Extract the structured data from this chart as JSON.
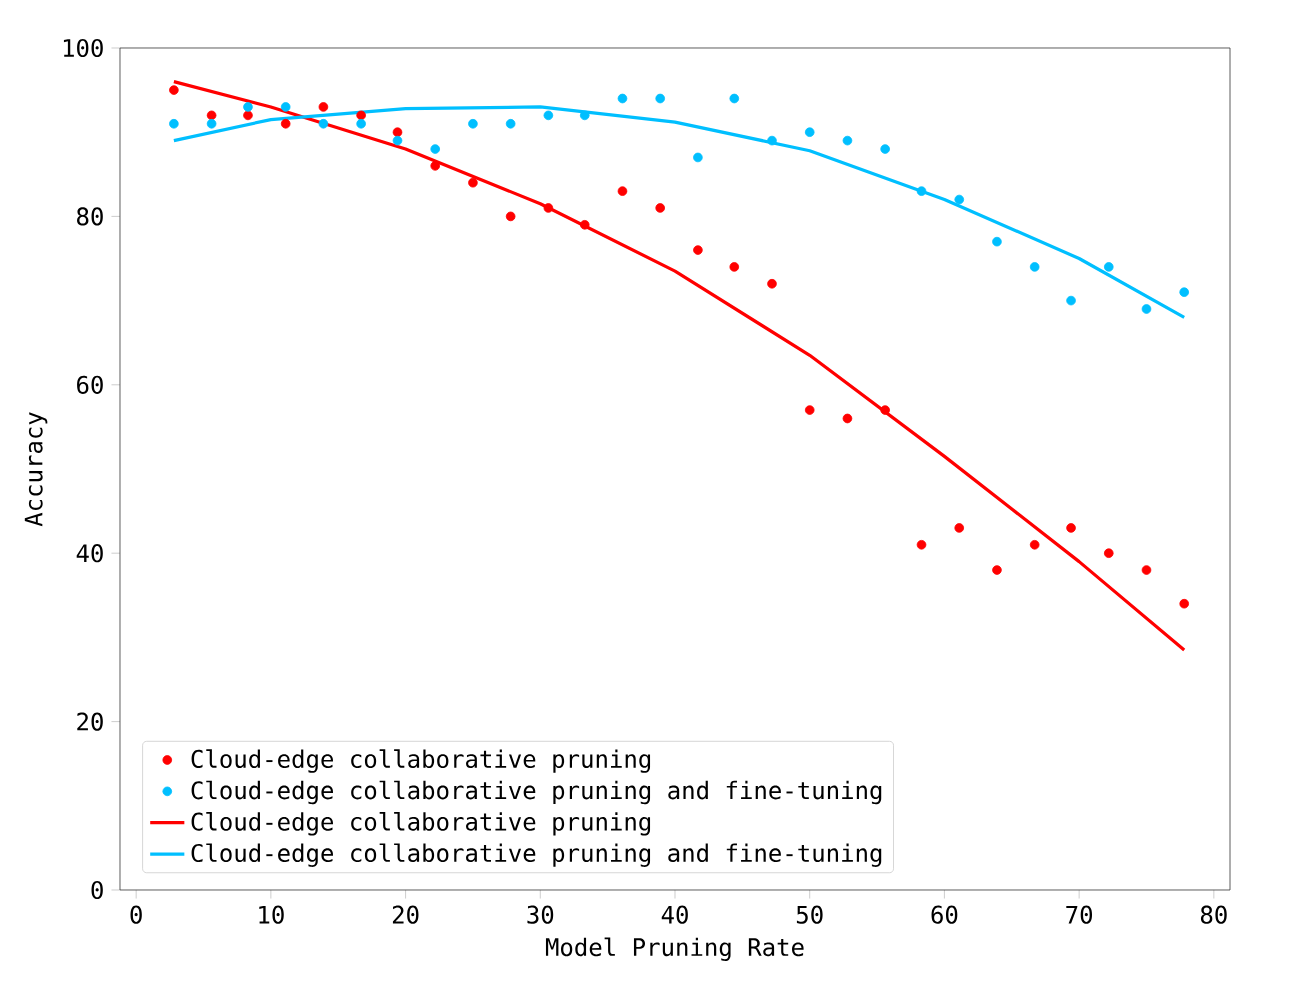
{
  "chart_data": {
    "type": "scatter",
    "xlabel": "Model Pruning Rate",
    "ylabel": "Accuracy",
    "xlim": [
      -1.2,
      81.2
    ],
    "ylim": [
      0,
      100
    ],
    "xticks": [
      0,
      10,
      20,
      30,
      40,
      50,
      60,
      70,
      80
    ],
    "yticks": [
      0,
      20,
      40,
      60,
      80,
      100
    ],
    "legend": "bottom left",
    "grid": false,
    "x": [
      2.8,
      5.6,
      8.3,
      11.1,
      13.9,
      16.7,
      19.4,
      22.2,
      25,
      27.8,
      30.6,
      33.3,
      36.1,
      38.9,
      41.7,
      44.4,
      47.2,
      50,
      52.8,
      55.6,
      58.3,
      61.1,
      63.9,
      66.7,
      69.4,
      72.2,
      75,
      77.8
    ],
    "series": [
      {
        "name": "Cloud-edge collaborative pruning",
        "marker": "circle",
        "color": "#ff0000",
        "values": [
          95,
          92,
          92,
          91,
          93,
          92,
          90,
          86,
          84,
          80,
          81,
          79,
          83,
          81,
          76,
          74,
          72,
          57,
          56,
          57,
          41,
          43,
          38,
          41,
          43,
          40,
          38,
          34
        ]
      },
      {
        "name": "Cloud-edge collaborative pruning and fine-tuning",
        "marker": "circle",
        "color": "#00bfff",
        "values": [
          91,
          91,
          93,
          93,
          91,
          91,
          89,
          88,
          91,
          91,
          92,
          92,
          94,
          94,
          87,
          94,
          89,
          90,
          89,
          88,
          83,
          82,
          77,
          74,
          70,
          74,
          69,
          71
        ]
      },
      {
        "name": "Cloud-edge collaborative pruning",
        "type": "line",
        "marker": "none",
        "line_style": "solid",
        "color": "#ff0000",
        "x": [
          2.8,
          10,
          20,
          30,
          40,
          50,
          60,
          70,
          77.8
        ],
        "values": [
          96,
          93,
          88,
          81.5,
          73.5,
          63.5,
          51.5,
          39,
          28.5
        ]
      },
      {
        "name": "Cloud-edge collaborative pruning and fine-tuning",
        "type": "line",
        "marker": "none",
        "line_style": "solid",
        "color": "#00bfff",
        "x": [
          2.8,
          10,
          20,
          30,
          40,
          50,
          60,
          70,
          77.8
        ],
        "values": [
          89,
          91.5,
          92.8,
          93,
          91.2,
          87.8,
          82,
          75,
          68
        ]
      }
    ]
  }
}
